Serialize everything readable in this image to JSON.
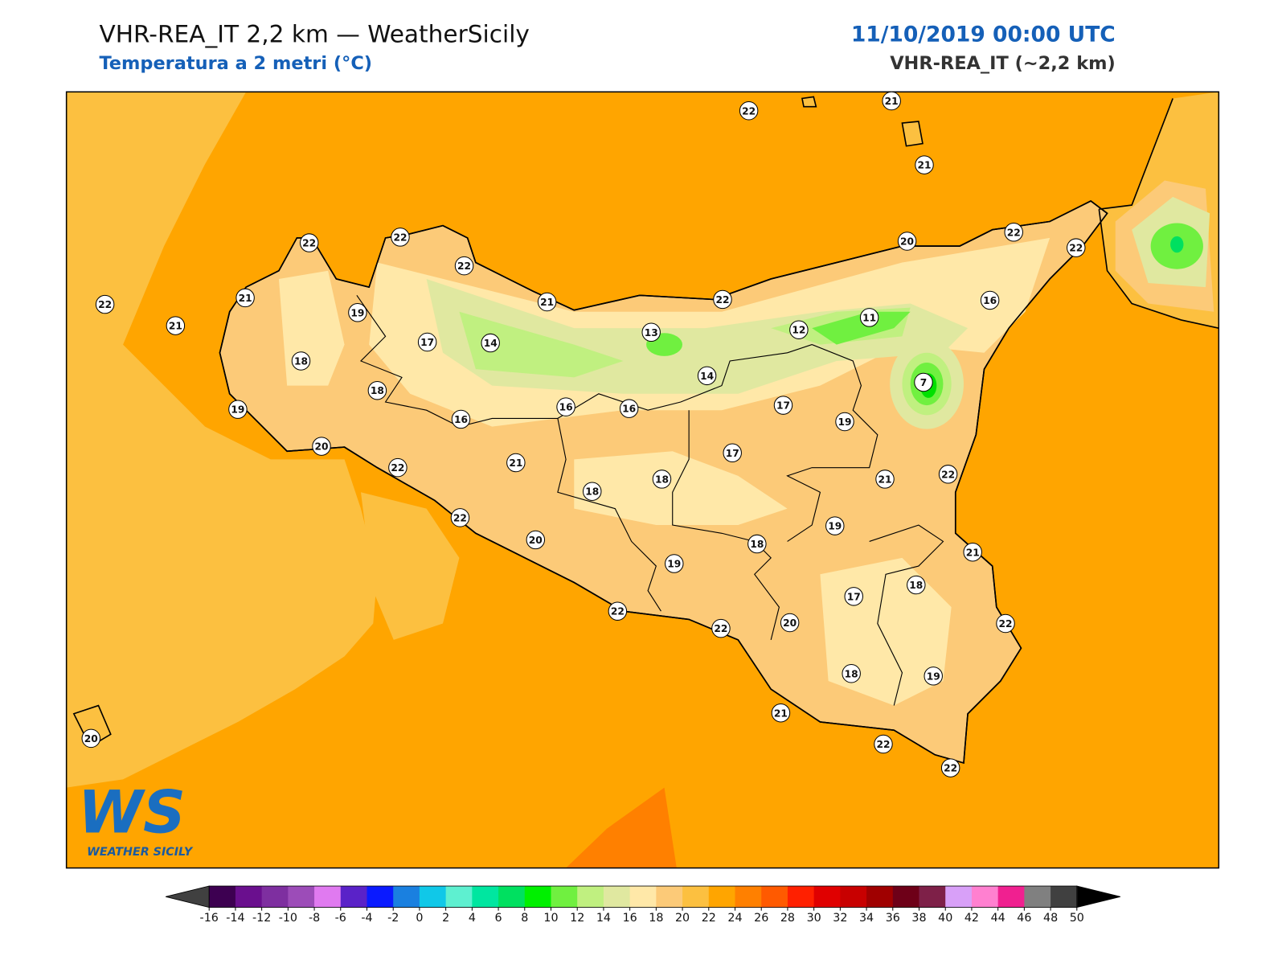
{
  "header": {
    "title": "VHR-REA_IT 2,2 km — WeatherSicily",
    "subtitle": "Temperatura a 2 metri (°C)",
    "datetime": "11/10/2019 00:00 UTC",
    "model": "VHR-REA_IT (~2,2 km)"
  },
  "stations": [
    22,
    21,
    21,
    22,
    22,
    22,
    22,
    21,
    21,
    19,
    18,
    17,
    14,
    21,
    13,
    22,
    14,
    12,
    11,
    20,
    22,
    22,
    16,
    7,
    17,
    19,
    18,
    19,
    20,
    16,
    16,
    16,
    22,
    21,
    17,
    18,
    18,
    21,
    22,
    22,
    20,
    19,
    18,
    19,
    21,
    18,
    17,
    20,
    22,
    22,
    22,
    18,
    19,
    21,
    22,
    22,
    20
  ],
  "colorbar": {
    "ticks": [
      -16,
      -14,
      -12,
      -10,
      -8,
      -6,
      -4,
      -2,
      0,
      2,
      4,
      6,
      8,
      10,
      12,
      14,
      16,
      18,
      20,
      22,
      24,
      26,
      28,
      30,
      32,
      34,
      36,
      38,
      40,
      42,
      44,
      46,
      48,
      50
    ],
    "colors": [
      "#3d0051",
      "#6a0f8e",
      "#7e2fa0",
      "#9c4cb8",
      "#e07af0",
      "#5a22c8",
      "#0a1aff",
      "#1a80e0",
      "#10c8e8",
      "#5ef0d0",
      "#00e6a0",
      "#00e060",
      "#00f000",
      "#70f040",
      "#c0f080",
      "#e0e8a0",
      "#ffe8a8",
      "#fcca78",
      "#fcc040",
      "#ffa500",
      "#ff8000",
      "#ff5a00",
      "#ff2000",
      "#e00000",
      "#c80000",
      "#a00000",
      "#6e0018",
      "#7e2048",
      "#d8a0f8",
      "#ff80d0",
      "#f02090",
      "#808080",
      "#404040"
    ],
    "under_color": "#404040",
    "over_color": "#000000"
  },
  "logo": {
    "mark": "WS",
    "name": "WEATHER SICILY"
  }
}
